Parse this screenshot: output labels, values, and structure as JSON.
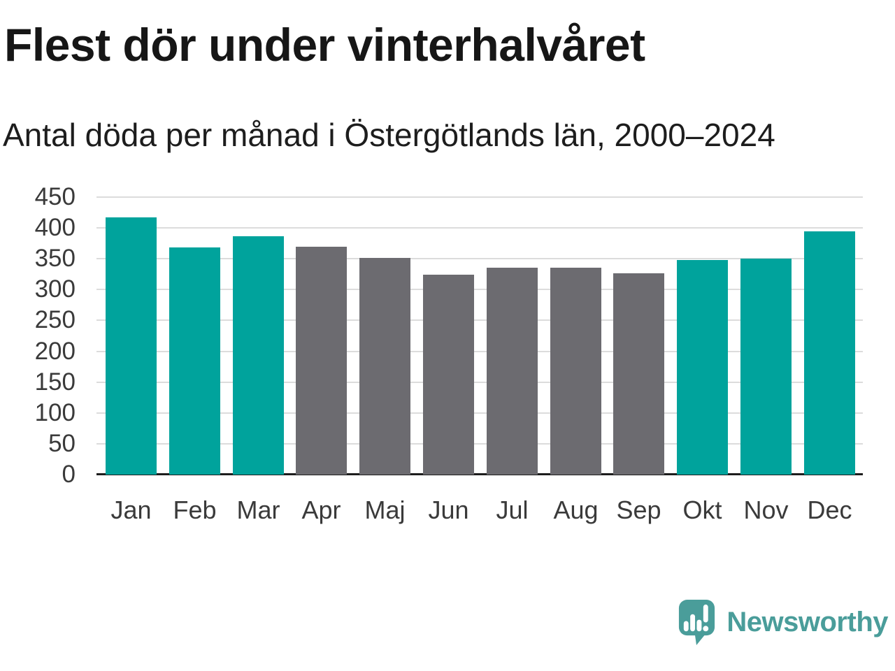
{
  "title": "Flest dör under vinterhalvåret",
  "subtitle": "Antal döda per månad i Östergötlands län, 2000–2024",
  "colors": {
    "winter_bar": "#00a39c",
    "summer_bar": "#6c6b70",
    "gridline": "#dcdcdc",
    "axis": "#1d1d1d",
    "tick_text": "#3a3a3a",
    "brand_teal": "#4a9d9a"
  },
  "brand": {
    "name": "Newsworthy",
    "icon": "speech-bubble-bar-chart-exclamation"
  },
  "chart_data": {
    "type": "bar",
    "title": "Flest dör under vinterhalvåret",
    "subtitle": "Antal döda per månad i Östergötlands län, 2000–2024",
    "categories": [
      "Jan",
      "Feb",
      "Mar",
      "Apr",
      "Maj",
      "Jun",
      "Jul",
      "Aug",
      "Sep",
      "Okt",
      "Nov",
      "Dec"
    ],
    "values": [
      417,
      368,
      387,
      370,
      351,
      324,
      336,
      335,
      326,
      348,
      350,
      395
    ],
    "bar_colors": [
      "#00a39c",
      "#00a39c",
      "#00a39c",
      "#6c6b70",
      "#6c6b70",
      "#6c6b70",
      "#6c6b70",
      "#6c6b70",
      "#6c6b70",
      "#00a39c",
      "#00a39c",
      "#00a39c"
    ],
    "xlabel": "",
    "ylabel": "",
    "ylim": [
      0,
      450
    ],
    "ytick_step": 50,
    "yticks": [
      0,
      50,
      100,
      150,
      200,
      250,
      300,
      350,
      400,
      450
    ],
    "grid": true,
    "legend": false,
    "highlight_meaning": "winter months (Okt–Mar) teal, summer months (Apr–Sep) gray"
  }
}
